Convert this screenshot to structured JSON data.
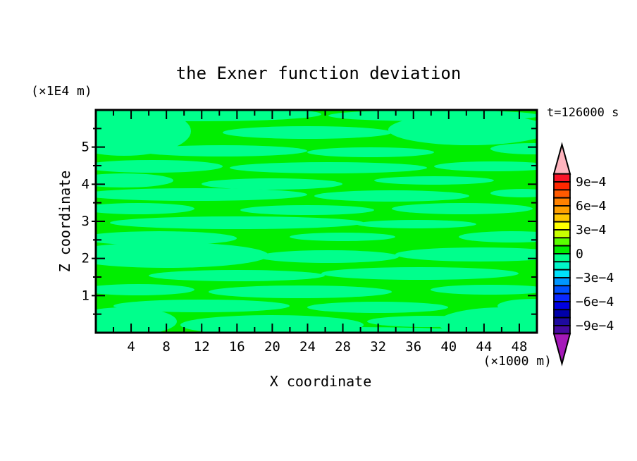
{
  "title": "the Exner function deviation",
  "time_label": "t=126000 s",
  "axes": {
    "x": {
      "title": "X coordinate",
      "unit": "(×1000 m)",
      "min": 0,
      "max": 50,
      "tick_step": 2,
      "label_step": 4,
      "labels": [
        4,
        8,
        12,
        16,
        20,
        24,
        28,
        32,
        36,
        40,
        44,
        48
      ]
    },
    "z": {
      "title": "Z coordinate",
      "unit": "(×1E4 m)",
      "min": 0,
      "max": 6,
      "tick_step": 0.5,
      "label_step": 1,
      "labels": [
        1,
        2,
        3,
        4,
        5
      ]
    }
  },
  "colorbar": {
    "labels": [
      "9e−4",
      "6e−4",
      "3e−4",
      "0",
      "−3e−4",
      "−6e−4",
      "−9e−4"
    ],
    "over_color": "#FFB4BE",
    "under_color": "#A519B9",
    "segment_colors": [
      "#FA1428",
      "#FF2800",
      "#FF5A00",
      "#FF8200",
      "#FFA000",
      "#FFC800",
      "#FFFF00",
      "#C8FF00",
      "#5AFF00",
      "#00EE00",
      "#00FF8C",
      "#00F5C8",
      "#00E1FA",
      "#0096FF",
      "#0050FF",
      "#0A28FF",
      "#0000E1",
      "#0000AA",
      "#1E0AA0",
      "#460AA0"
    ]
  },
  "field": {
    "background_color": "#00EE00",
    "streak_color": "#00FF8C",
    "streaks": [
      [
        150,
        6,
        170,
        10
      ],
      [
        480,
        8,
        150,
        8
      ],
      [
        40,
        30,
        95,
        35
      ],
      [
        300,
        32,
        120,
        9
      ],
      [
        530,
        28,
        115,
        22
      ],
      [
        620,
        55,
        60,
        8
      ],
      [
        180,
        58,
        120,
        8
      ],
      [
        390,
        60,
        90,
        7
      ],
      [
        80,
        80,
        100,
        9
      ],
      [
        330,
        82,
        140,
        8
      ],
      [
        565,
        80,
        85,
        7
      ],
      [
        40,
        100,
        70,
        10
      ],
      [
        250,
        105,
        100,
        8
      ],
      [
        480,
        100,
        85,
        6
      ],
      [
        140,
        120,
        160,
        9
      ],
      [
        420,
        122,
        110,
        8
      ],
      [
        605,
        118,
        45,
        6
      ],
      [
        60,
        140,
        80,
        8
      ],
      [
        300,
        142,
        95,
        7
      ],
      [
        520,
        140,
        100,
        8
      ],
      [
        200,
        160,
        180,
        9
      ],
      [
        455,
        162,
        85,
        6
      ],
      [
        90,
        182,
        110,
        10
      ],
      [
        350,
        180,
        75,
        6
      ],
      [
        590,
        180,
        75,
        8
      ],
      [
        100,
        206,
        145,
        18
      ],
      [
        330,
        208,
        100,
        9
      ],
      [
        545,
        205,
        120,
        10
      ],
      [
        200,
        235,
        125,
        8
      ],
      [
        460,
        232,
        140,
        9
      ],
      [
        60,
        255,
        80,
        8
      ],
      [
        290,
        258,
        130,
        9
      ],
      [
        560,
        255,
        85,
        7
      ],
      [
        150,
        278,
        125,
        9
      ],
      [
        400,
        280,
        100,
        8
      ],
      [
        620,
        278,
        50,
        10
      ],
      [
        40,
        300,
        75,
        20
      ],
      [
        250,
        305,
        130,
        14
      ],
      [
        470,
        300,
        85,
        8
      ],
      [
        580,
        302,
        95,
        22
      ],
      [
        350,
        315,
        200,
        7
      ]
    ]
  },
  "chart_data": {
    "type": "heatmap",
    "title": "the Exner function deviation",
    "xlabel": "X coordinate",
    "ylabel": "Z coordinate",
    "x_unit": "(×1000 m)",
    "y_unit": "(×1E4 m)",
    "xlim": [
      0,
      50
    ],
    "ylim": [
      0,
      6
    ],
    "x_ticks": [
      4,
      8,
      12,
      16,
      20,
      24,
      28,
      32,
      36,
      40,
      44,
      48
    ],
    "y_ticks": [
      1,
      2,
      3,
      4,
      5
    ],
    "time": "t=126000 s",
    "contour_levels": {
      "min": -0.001,
      "max": 0.001,
      "step": 0.0001
    },
    "colorbar_labels": [
      "9e−4",
      "6e−4",
      "3e−4",
      "0",
      "−3e−4",
      "−6e−4",
      "−9e−4"
    ],
    "visible_bands": [
      {
        "range": "0 to 1e−4",
        "color": "#00EE00"
      },
      {
        "range": "−1e−4 to 0",
        "color": "#00FF8C"
      }
    ],
    "legend_position": "right colorbar with over/under arrow caps",
    "grid": false
  }
}
